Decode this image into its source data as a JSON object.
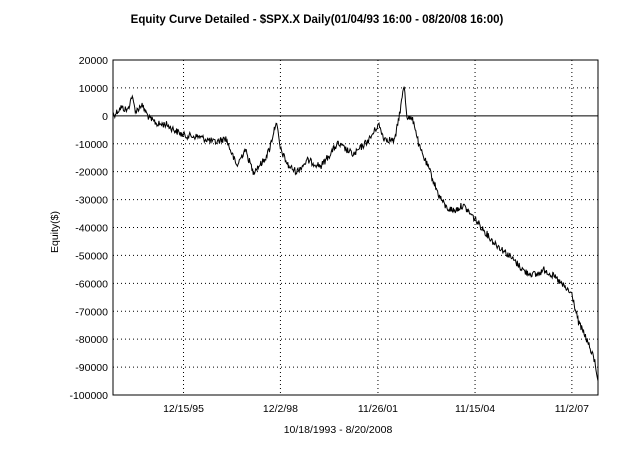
{
  "chart_data": {
    "type": "line",
    "title": "Equity Curve Detailed - $SPX.X Daily(01/04/93 16:00 - 08/20/08 16:00)",
    "xlabel": "10/18/1993 - 8/20/2008",
    "ylabel": "Equity($)",
    "ylim": [
      -100000,
      20000
    ],
    "yticks": [
      20000,
      10000,
      0,
      -10000,
      -20000,
      -30000,
      -40000,
      -50000,
      -60000,
      -70000,
      -80000,
      -90000,
      -100000
    ],
    "xlim": [
      "1993-10-18",
      "2008-08-20"
    ],
    "xticks": [
      {
        "label": "12/15/95",
        "date": "1995-12-15"
      },
      {
        "label": "12/2/98",
        "date": "1998-12-02"
      },
      {
        "label": "11/26/01",
        "date": "2001-11-26"
      },
      {
        "label": "11/15/04",
        "date": "2004-11-15"
      },
      {
        "label": "11/2/07",
        "date": "2007-11-02"
      }
    ],
    "grid": "dotted",
    "reference_line": 0,
    "series": [
      {
        "color": "#000000",
        "points": [
          [
            "1993-10-18",
            0
          ],
          [
            "1994-01-15",
            3000
          ],
          [
            "1994-04-01",
            2000
          ],
          [
            "1994-05-15",
            7000
          ],
          [
            "1994-07-01",
            1500
          ],
          [
            "1994-09-01",
            4000
          ],
          [
            "1994-12-01",
            -1000
          ],
          [
            "1995-03-01",
            -3000
          ],
          [
            "1995-06-01",
            -3000
          ],
          [
            "1995-09-01",
            -5000
          ],
          [
            "1995-12-15",
            -7000
          ],
          [
            "1996-06-01",
            -7500
          ],
          [
            "1996-12-01",
            -9500
          ],
          [
            "1997-04-01",
            -8000
          ],
          [
            "1997-08-01",
            -18000
          ],
          [
            "1997-11-01",
            -12000
          ],
          [
            "1998-02-01",
            -20000
          ],
          [
            "1998-06-01",
            -16000
          ],
          [
            "1998-08-01",
            -12000
          ],
          [
            "1998-10-15",
            -2000
          ],
          [
            "1998-12-02",
            -12000
          ],
          [
            "1999-03-01",
            -18000
          ],
          [
            "1999-06-01",
            -20000
          ],
          [
            "1999-10-01",
            -16000
          ],
          [
            "2000-03-01",
            -18000
          ],
          [
            "2000-09-01",
            -10000
          ],
          [
            "2001-03-01",
            -14000
          ],
          [
            "2001-09-01",
            -8000
          ],
          [
            "2001-12-01",
            -3000
          ],
          [
            "2002-02-01",
            -8000
          ],
          [
            "2002-06-01",
            -9000
          ],
          [
            "2002-08-01",
            2000
          ],
          [
            "2002-09-15",
            11000
          ],
          [
            "2002-10-15",
            0
          ],
          [
            "2003-01-01",
            -2000
          ],
          [
            "2003-03-01",
            -11000
          ],
          [
            "2003-07-01",
            -20000
          ],
          [
            "2003-10-01",
            -28000
          ],
          [
            "2004-01-01",
            -33000
          ],
          [
            "2004-04-01",
            -34000
          ],
          [
            "2004-07-01",
            -32000
          ],
          [
            "2004-11-15",
            -37000
          ],
          [
            "2005-06-01",
            -45000
          ],
          [
            "2005-12-01",
            -50000
          ],
          [
            "2006-06-01",
            -56000
          ],
          [
            "2006-10-01",
            -57000
          ],
          [
            "2007-01-01",
            -55000
          ],
          [
            "2007-05-01",
            -58000
          ],
          [
            "2007-09-01",
            -62000
          ],
          [
            "2007-11-02",
            -64000
          ],
          [
            "2008-01-15",
            -74000
          ],
          [
            "2008-04-01",
            -79000
          ],
          [
            "2008-06-01",
            -84000
          ],
          [
            "2008-07-15",
            -88000
          ],
          [
            "2008-08-20",
            -95000
          ]
        ]
      }
    ]
  }
}
